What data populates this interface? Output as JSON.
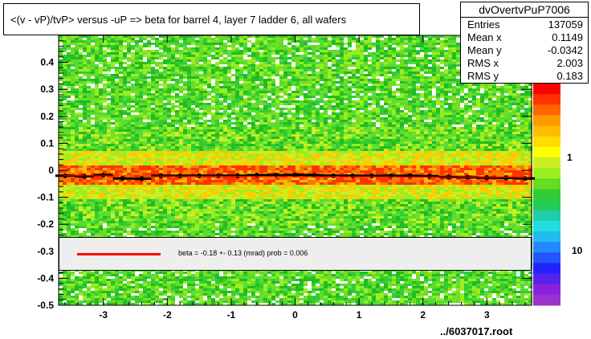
{
  "title": "<(v - vP)/tvP> versus  -uP => beta for barrel 4, layer 7 ladder 6, all wafers",
  "stats": {
    "name": "dvOvertvPuP7006",
    "rows": [
      {
        "label": "Entries",
        "value": "137059"
      },
      {
        "label": "Mean x",
        "value": "0.1149"
      },
      {
        "label": "Mean y",
        "value": "-0.0342"
      },
      {
        "label": "RMS x",
        "value": "2.003"
      },
      {
        "label": "RMS y",
        "value": "0.183"
      }
    ]
  },
  "fit_legend": {
    "text": "beta =   -0.18 +-  0.13 (mrad) prob = 0.006",
    "line_color": "#ff0000"
  },
  "filename": "../6037017.root",
  "palette_labels": [
    "1",
    "10"
  ],
  "colors": {
    "background_green": "#33cc33",
    "profile_points": "#000000",
    "fit_line": "#ff0000"
  },
  "chart_data": {
    "type": "heatmap",
    "title": "<(v - vP)/tvP> versus  -uP => beta for barrel 4, layer 7 ladder 6, all wafers",
    "xlabel": "",
    "ylabel": "",
    "xlim": [
      -3.7,
      3.7
    ],
    "ylim": [
      -0.5,
      0.5
    ],
    "x_ticks": [
      -3,
      -2,
      -1,
      0,
      1,
      2,
      3
    ],
    "y_ticks": [
      -0.5,
      -0.4,
      -0.3,
      -0.2,
      -0.1,
      0,
      0.1,
      0.2,
      0.3,
      0.4
    ],
    "y_tick_labels": [
      "-0.5",
      "-0.4",
      "-0.3",
      "-0.2",
      "-0.1",
      "0",
      "0.1",
      "0.2",
      "0.3",
      "0.4"
    ],
    "color_scale": "log",
    "color_scale_labels": [
      "1",
      "10"
    ],
    "profile": {
      "x": [
        -3.6,
        -3.3,
        -3.0,
        -2.7,
        -2.4,
        -2.1,
        -1.8,
        -1.5,
        -1.2,
        -0.9,
        -0.6,
        -0.3,
        0.0,
        0.3,
        0.6,
        0.9,
        1.2,
        1.5,
        1.8,
        2.1,
        2.4,
        2.7,
        3.0,
        3.3,
        3.6
      ],
      "y": [
        -0.02,
        -0.022,
        -0.018,
        -0.03,
        -0.031,
        -0.02,
        -0.02,
        -0.02,
        -0.02,
        -0.02,
        -0.018,
        -0.018,
        -0.017,
        -0.018,
        -0.02,
        -0.02,
        -0.021,
        -0.02,
        -0.02,
        -0.022,
        -0.025,
        -0.026,
        -0.027,
        -0.028,
        -0.03
      ]
    },
    "fit": {
      "slope_mrad": -0.18,
      "slope_err_mrad": 0.13,
      "prob": 0.006
    }
  }
}
